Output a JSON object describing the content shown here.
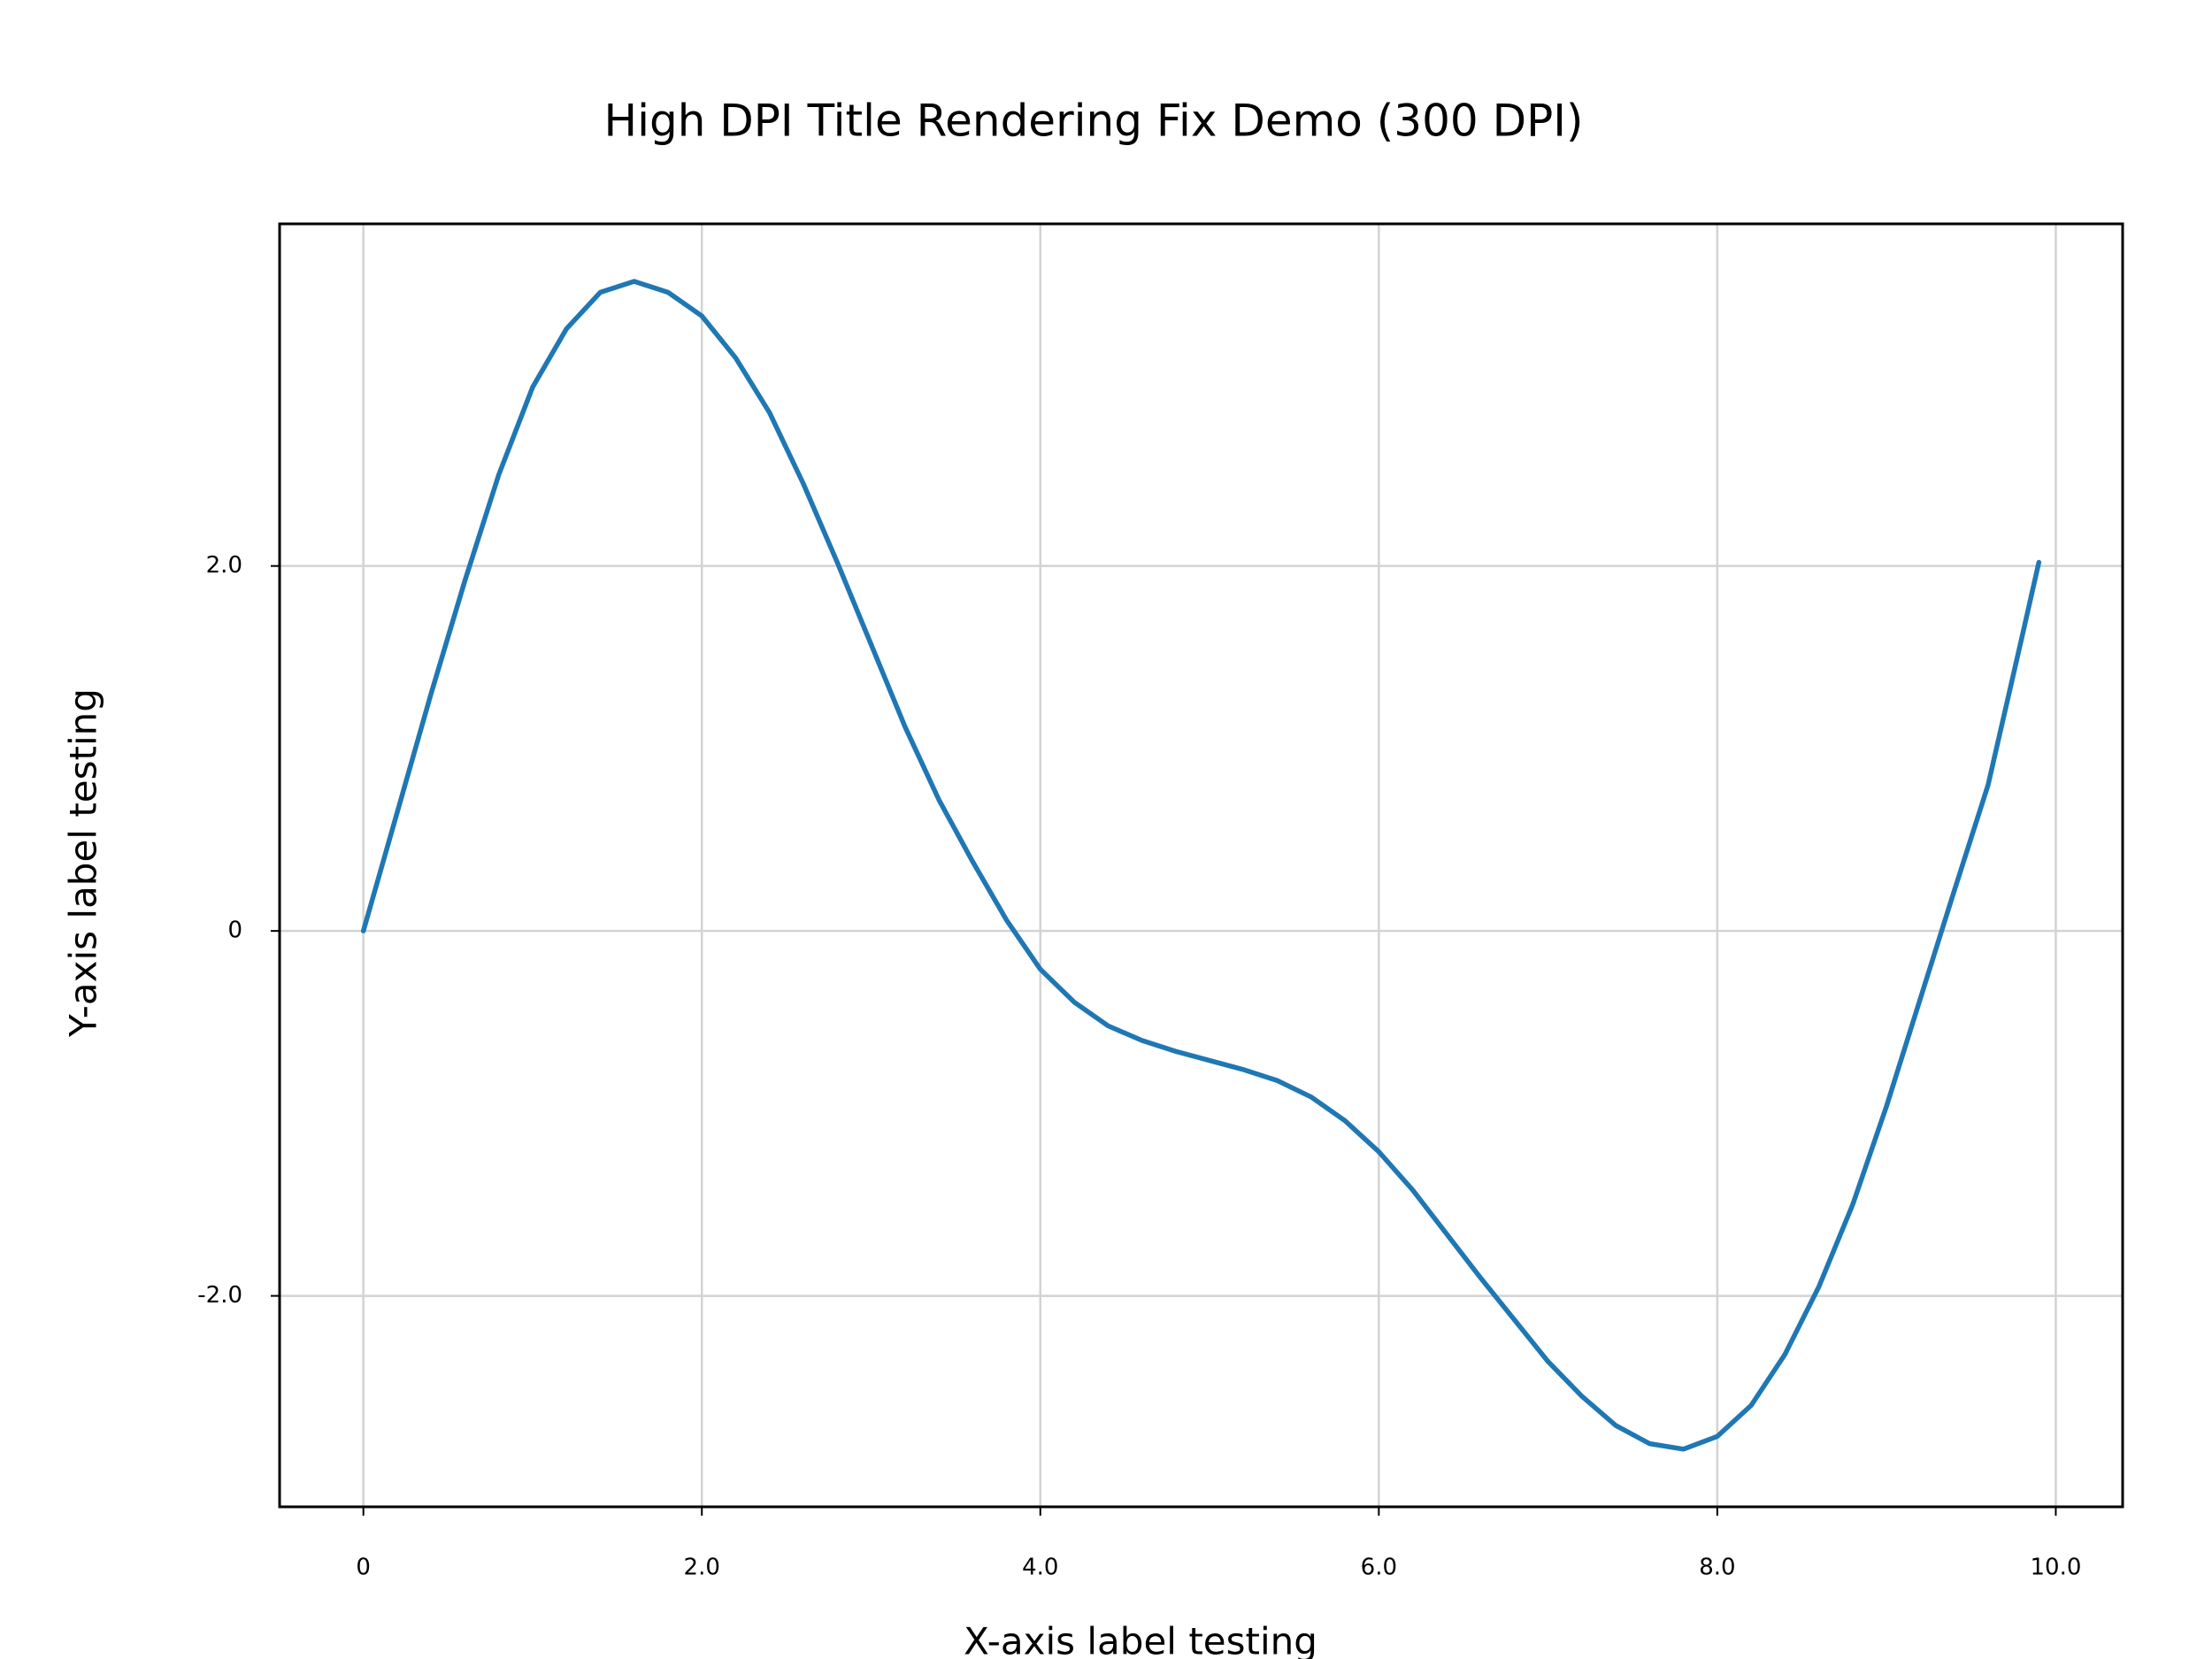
{
  "chart_data": {
    "type": "line",
    "title": "High DPI Title Rendering Fix Demo (300 DPI)",
    "x_label": "X-axis label testing",
    "y_label": "Y-axis label testing",
    "x": [
      0,
      0.2,
      0.4,
      0.6,
      0.8,
      1.0,
      1.2,
      1.4,
      1.6,
      1.8,
      2.0,
      2.2,
      2.4,
      2.6,
      2.8,
      3.0,
      3.2,
      3.4,
      3.6,
      3.8,
      4.0,
      4.2,
      4.4,
      4.6,
      4.8,
      5.0,
      5.2,
      5.4,
      5.6,
      5.8,
      6.0,
      6.2,
      6.4,
      6.6,
      6.8,
      7.0,
      7.2,
      7.4,
      7.6,
      7.8,
      8.0,
      8.2,
      8.4,
      8.6,
      8.8,
      9.0,
      9.2,
      9.4,
      9.6,
      9.8,
      9.9
    ],
    "values": [
      0,
      0.65,
      1.3,
      1.92,
      2.5,
      2.98,
      3.3,
      3.5,
      3.56,
      3.5,
      3.37,
      3.14,
      2.84,
      2.45,
      2.02,
      1.57,
      1.12,
      0.72,
      0.38,
      0.06,
      -0.21,
      -0.39,
      -0.52,
      -0.6,
      -0.66,
      -0.71,
      -0.76,
      -0.82,
      -0.91,
      -1.04,
      -1.21,
      -1.42,
      -1.66,
      -1.9,
      -2.13,
      -2.36,
      -2.55,
      -2.71,
      -2.81,
      -2.84,
      -2.77,
      -2.6,
      -2.32,
      -1.95,
      -1.5,
      -0.96,
      -0.37,
      0.22,
      0.8,
      1.61,
      2.02
    ],
    "color": "#1f77b4",
    "xlim": [
      -0.495,
      10.395
    ],
    "ylim": [
      -3.156,
      3.875
    ],
    "xticks": [
      0,
      {
        "value": 2,
        "label": "2.0"
      },
      {
        "value": 4,
        "label": "4.0"
      },
      {
        "value": 6,
        "label": "6.0"
      },
      {
        "value": 8,
        "label": "8.0"
      },
      {
        "value": 10,
        "label": "10.0"
      }
    ],
    "yticks": [
      {
        "value": -2,
        "label": "-2.0"
      },
      0,
      {
        "value": 2,
        "label": "2.0"
      }
    ],
    "grid": true
  }
}
